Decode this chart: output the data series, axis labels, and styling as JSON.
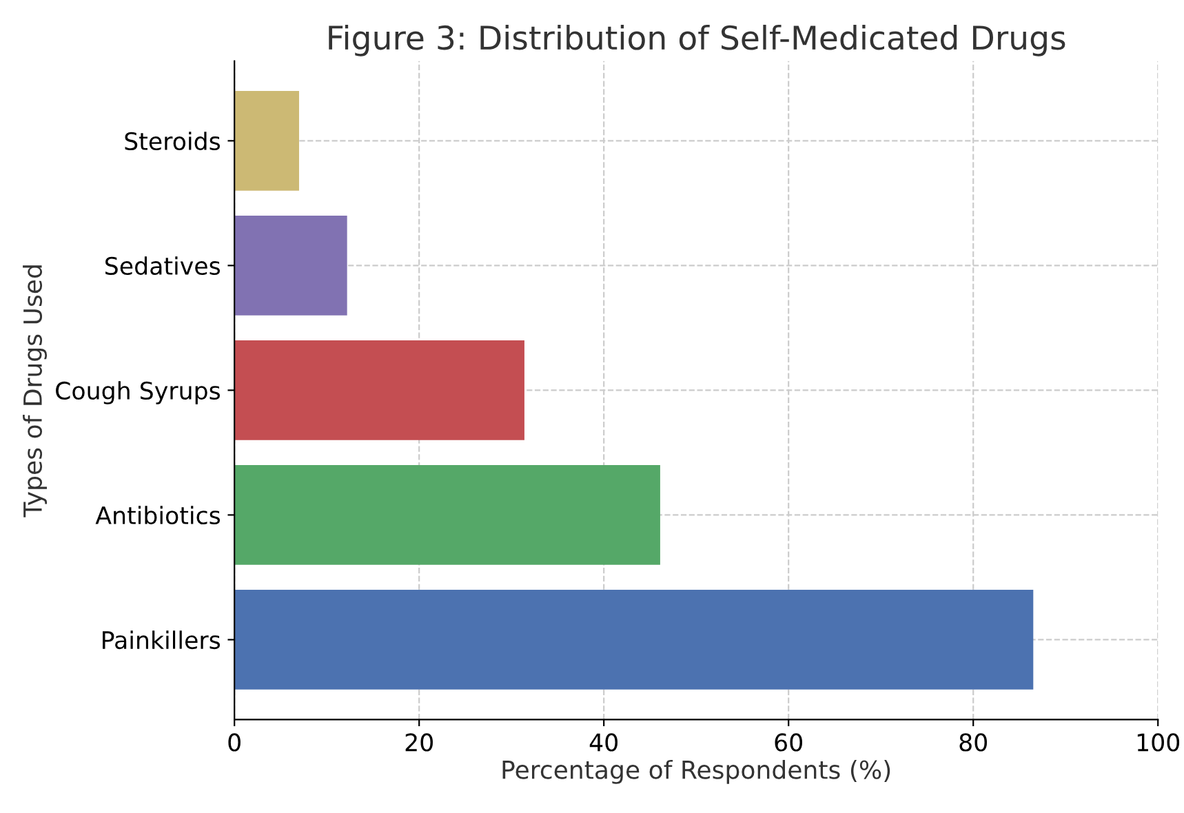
{
  "chart_data": {
    "type": "bar",
    "orientation": "horizontal",
    "title": "Figure 3: Distribution of Self-Medicated Drugs",
    "xlabel": "Percentage of Respondents (%)",
    "ylabel": "Types of Drugs Used",
    "categories": [
      "Steroids",
      "Sedatives",
      "Cough Syrups",
      "Antibiotics",
      "Painkillers"
    ],
    "values": [
      7.0,
      12.2,
      31.4,
      46.1,
      86.5
    ],
    "colors": [
      "#ccb974",
      "#8172b2",
      "#c44e52",
      "#55a868",
      "#4c72b0"
    ],
    "xlim": [
      0,
      100
    ],
    "xticks": [
      0,
      20,
      40,
      60,
      80,
      100
    ],
    "grid": true,
    "legend": false
  }
}
